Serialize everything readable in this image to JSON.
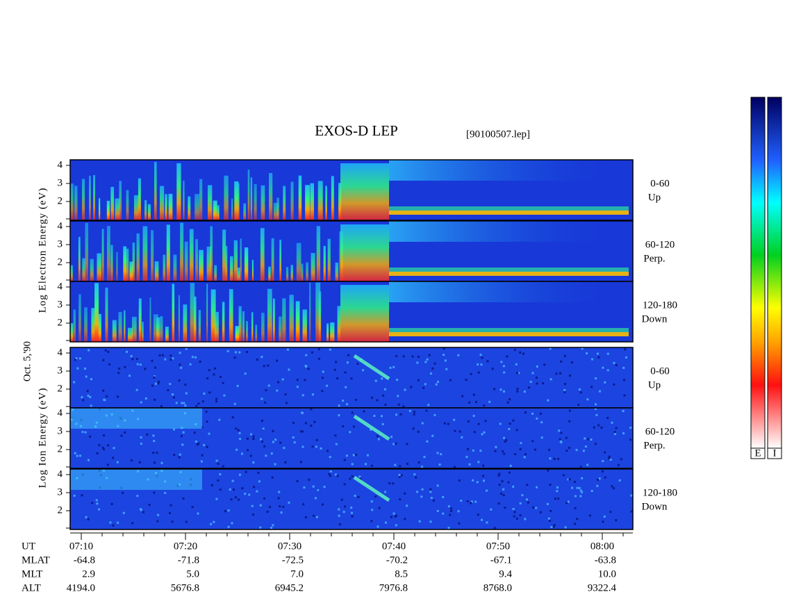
{
  "header": {
    "title": "EXOS-D LEP",
    "file": "[90100507.lep]"
  },
  "electron": {
    "axis_label": "Log Electron Energy (eV)",
    "panels": [
      {
        "range": "0-60",
        "direction": "Up"
      },
      {
        "range": "60-120",
        "direction": "Perp."
      },
      {
        "range": "120-180",
        "direction": "Down"
      }
    ],
    "yticks": [
      "4",
      "3",
      "2"
    ]
  },
  "date": "Oct. 5,'90",
  "ion": {
    "axis_label": "Log Ion Energy (eV)",
    "panels": [
      {
        "range": "0-60",
        "direction": "Up"
      },
      {
        "range": "60-120",
        "direction": "Perp."
      },
      {
        "range": "120-180",
        "direction": "Down"
      }
    ],
    "yticks": [
      "4",
      "3",
      "2"
    ]
  },
  "orbit": {
    "rows": [
      {
        "label": "UT",
        "values": [
          "07:10",
          "07:20",
          "07:30",
          "07:40",
          "07:50",
          "08:00"
        ]
      },
      {
        "label": "MLAT",
        "values": [
          "-64.8",
          "-71.8",
          "-72.5",
          "-70.2",
          "-67.1",
          "-63.8"
        ]
      },
      {
        "label": "MLT",
        "values": [
          "2.9",
          "5.0",
          "7.0",
          "8.5",
          "9.4",
          "10.0"
        ]
      },
      {
        "label": "ALT",
        "values": [
          "4194.0",
          "5676.8",
          "6945.2",
          "7976.8",
          "8768.0",
          "9322.4"
        ]
      }
    ]
  },
  "colorbars": [
    "E",
    "I"
  ]
}
